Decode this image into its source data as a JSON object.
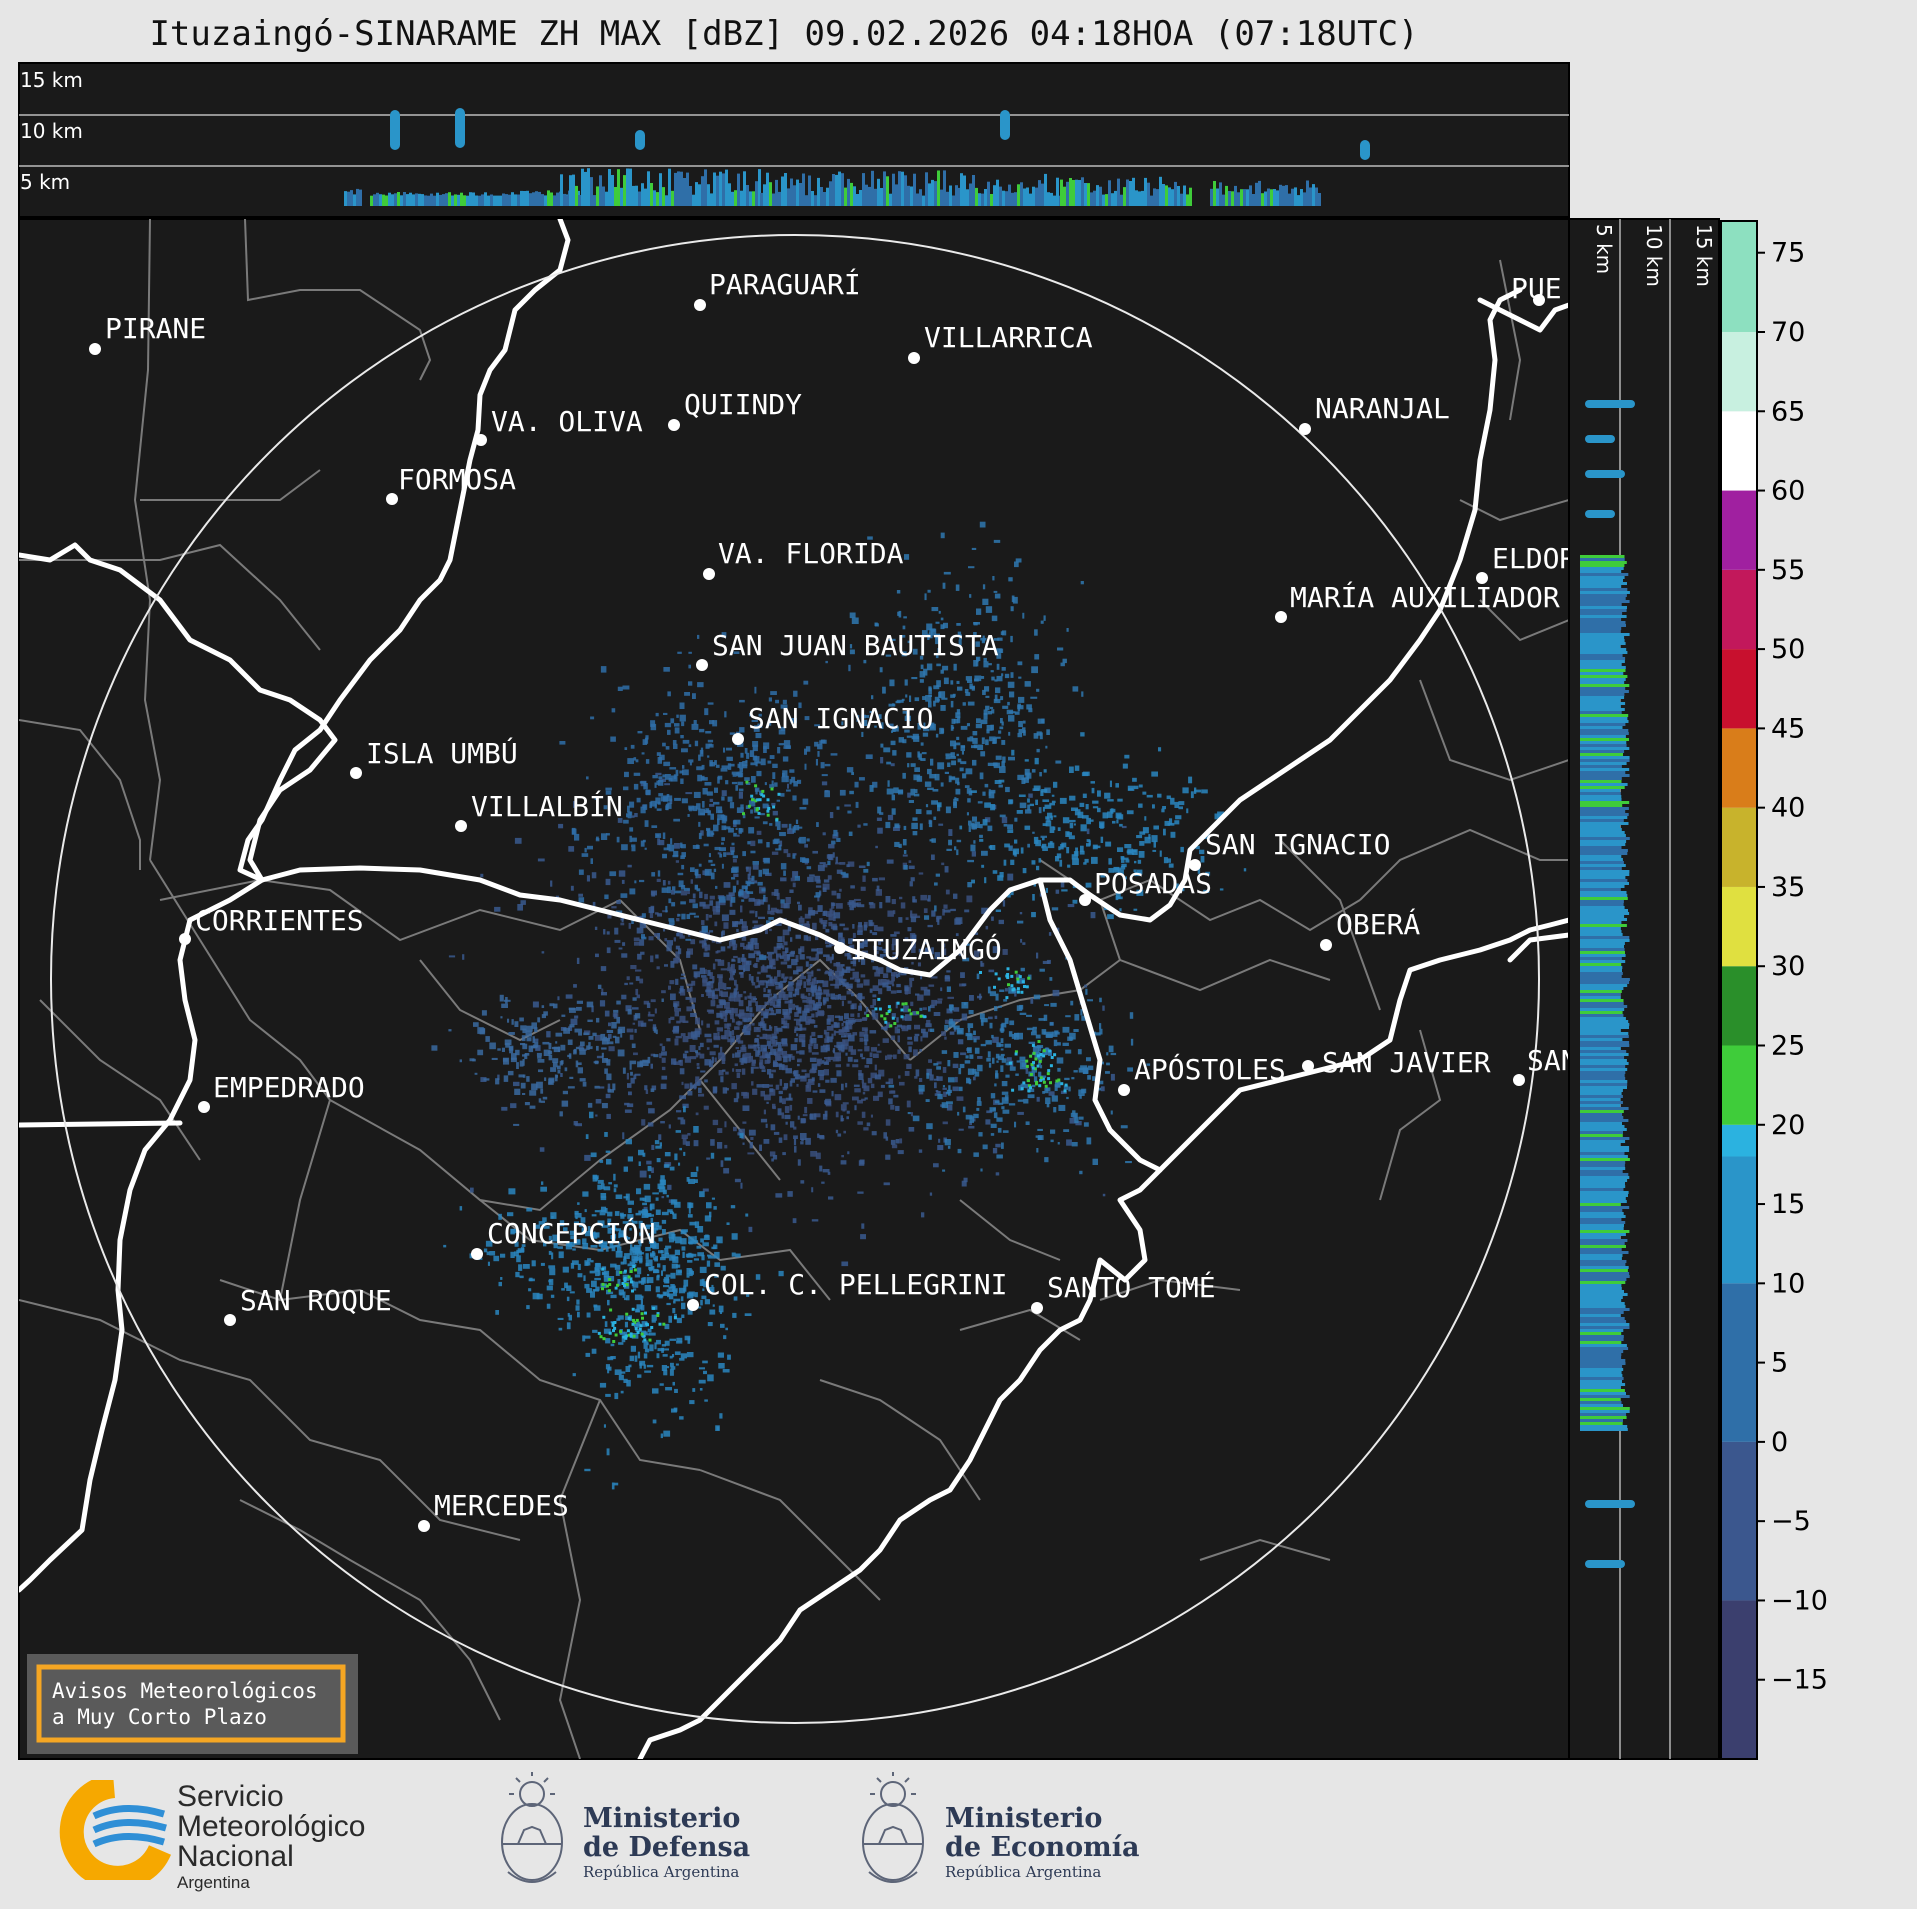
{
  "title": "Ituzaingó-SINARAME ZH MAX [dBZ] 09.02.2026 04:18HOA (07:18UTC)",
  "top_panel_labels": [
    "15 km",
    "10 km",
    "5 km"
  ],
  "side_panel_labels": [
    "5 km",
    "10 km",
    "15 km"
  ],
  "colorbar": {
    "unit": "dBZ",
    "ticks": [
      "75",
      "70",
      "65",
      "60",
      "55",
      "50",
      "45",
      "40",
      "35",
      "30",
      "25",
      "20",
      "15",
      "10",
      "5",
      "0",
      "−5",
      "−10",
      "−15"
    ],
    "stops": [
      {
        "from": -20,
        "to": -10,
        "color": "#3b3f6e"
      },
      {
        "from": -10,
        "to": 0,
        "color": "#3b578e"
      },
      {
        "from": 0,
        "to": 10,
        "color": "#2f6fa8"
      },
      {
        "from": 10,
        "to": 18,
        "color": "#2a95c9"
      },
      {
        "from": 18,
        "to": 20,
        "color": "#2bb2e0"
      },
      {
        "from": 20,
        "to": 25,
        "color": "#3fcc3a"
      },
      {
        "from": 25,
        "to": 30,
        "color": "#2a8f2a"
      },
      {
        "from": 30,
        "to": 35,
        "color": "#e0e040"
      },
      {
        "from": 35,
        "to": 40,
        "color": "#c8b32c"
      },
      {
        "from": 40,
        "to": 45,
        "color": "#d97d1a"
      },
      {
        "from": 45,
        "to": 50,
        "color": "#c8102e"
      },
      {
        "from": 50,
        "to": 55,
        "color": "#c2185b"
      },
      {
        "from": 55,
        "to": 60,
        "color": "#a020a0"
      },
      {
        "from": 60,
        "to": 65,
        "color": "#ffffff"
      },
      {
        "from": 65,
        "to": 70,
        "color": "#c8f0e0"
      },
      {
        "from": 70,
        "to": 77,
        "color": "#8de0c0"
      }
    ]
  },
  "cities": [
    {
      "name": "PIRANE"
    },
    {
      "name": "PARAGUARÍ"
    },
    {
      "name": "VILLARRICA"
    },
    {
      "name": "QUIINDY"
    },
    {
      "name": "VA. OLIVA"
    },
    {
      "name": "NARANJAL"
    },
    {
      "name": "FORMOSA"
    },
    {
      "name": "VA. FLORIDA"
    },
    {
      "name": "ELDOR"
    },
    {
      "name": "MARÍA AUXILIADOR"
    },
    {
      "name": "SAN JUAN BAUTISTA"
    },
    {
      "name": "SAN IGNACIO"
    },
    {
      "name": "ISLA UMBÚ"
    },
    {
      "name": "VILLALBÍN"
    },
    {
      "name": "SAN IGNACIO"
    },
    {
      "name": "POSADAS"
    },
    {
      "name": "CORRIENTES"
    },
    {
      "name": "ITUZAINGÓ"
    },
    {
      "name": "OBERÁ"
    },
    {
      "name": "APÓSTOLES"
    },
    {
      "name": "SAN JAVIER"
    },
    {
      "name": "SAN"
    },
    {
      "name": "EMPEDRADO"
    },
    {
      "name": "CONCEPCIÓN"
    },
    {
      "name": "COL. C. PELLEGRINI"
    },
    {
      "name": "SANTO TOMÉ"
    },
    {
      "name": "SAN ROQUE"
    },
    {
      "name": "MERCEDES"
    },
    {
      "name": "PUE"
    }
  ],
  "warning_box": {
    "line1": "Avisos Meteorológicos",
    "line2": "a Muy Corto Plazo",
    "border_color": "#f5a623"
  },
  "logos": {
    "smn": {
      "line1": "Servicio",
      "line2": "Meteorológico",
      "line3": "Nacional",
      "line4": "Argentina"
    },
    "defensa": {
      "line1": "Ministerio",
      "line2": "de Defensa",
      "line3": "República Argentina"
    },
    "economia": {
      "line1": "Ministerio",
      "line2": "de Economía",
      "line3": "República Argentina"
    }
  },
  "colors": {
    "map_bg": "#1a1a1a",
    "page_bg": "#e6e6e6",
    "border": "#7a7a7a",
    "river": "#ffffff"
  }
}
